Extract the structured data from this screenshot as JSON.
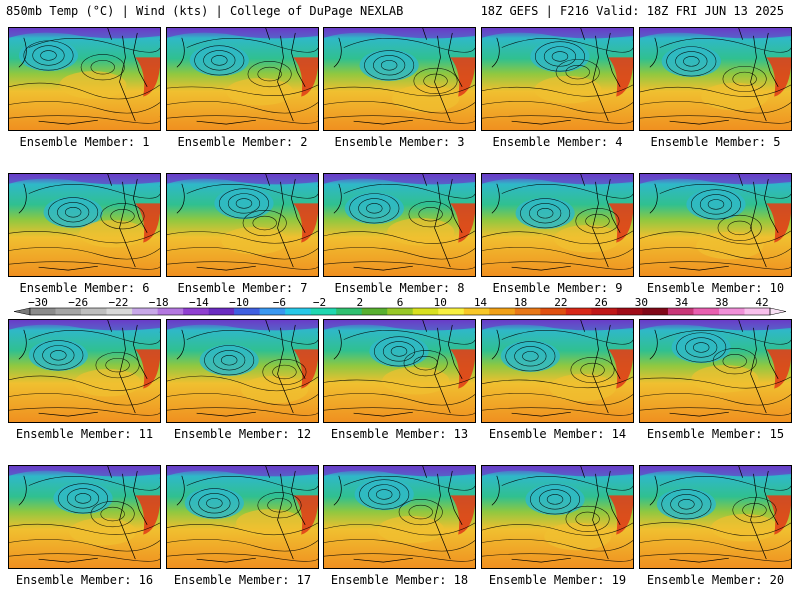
{
  "header": {
    "left": "850mb Temp (°C) | Wind (kts) | College of DuPage NEXLAB",
    "right": "18Z GEFS | F216 Valid: 18Z FRI JUN 13 2025"
  },
  "panels": [
    {
      "label": "Ensemble Member: 1"
    },
    {
      "label": "Ensemble Member: 2"
    },
    {
      "label": "Ensemble Member: 3"
    },
    {
      "label": "Ensemble Member: 4"
    },
    {
      "label": "Ensemble Member: 5"
    },
    {
      "label": "Ensemble Member: 6"
    },
    {
      "label": "Ensemble Member: 7"
    },
    {
      "label": "Ensemble Member: 8"
    },
    {
      "label": "Ensemble Member: 9"
    },
    {
      "label": "Ensemble Member: 10"
    },
    {
      "label": "Ensemble Member: 11"
    },
    {
      "label": "Ensemble Member: 12"
    },
    {
      "label": "Ensemble Member: 13"
    },
    {
      "label": "Ensemble Member: 14"
    },
    {
      "label": "Ensemble Member: 15"
    },
    {
      "label": "Ensemble Member: 16"
    },
    {
      "label": "Ensemble Member: 17"
    },
    {
      "label": "Ensemble Member: 18"
    },
    {
      "label": "Ensemble Member: 19"
    },
    {
      "label": "Ensemble Member: 20"
    }
  ],
  "colorbar": {
    "ticks": [
      "−30",
      "−26",
      "−22",
      "−18",
      "−14",
      "−10",
      "−6",
      "−2",
      "2",
      "6",
      "10",
      "14",
      "18",
      "22",
      "26",
      "30",
      "34",
      "38",
      "42"
    ],
    "colors": [
      "#8c8c8c",
      "#a6a6a6",
      "#bfbfbf",
      "#d9d9d9",
      "#c8a8e8",
      "#b478e0",
      "#9040d0",
      "#6a2cc0",
      "#4060e0",
      "#3a98f0",
      "#28c8e8",
      "#20d8b0",
      "#30c070",
      "#58b030",
      "#98c828",
      "#d8e020",
      "#f8f040",
      "#f8c828",
      "#f0a018",
      "#e87818",
      "#e05010",
      "#d82818",
      "#c01818",
      "#a00c18",
      "#800818",
      "#c83878",
      "#e860b0",
      "#f090d8",
      "#f8c0ec"
    ]
  },
  "palette": {
    "cold": "#2fb8c8",
    "cool": "#30c090",
    "mild": "#90c840",
    "warm": "#f0c030",
    "hot": "#f09020",
    "heat": "#e04018",
    "purple": "#6a3cc8"
  }
}
